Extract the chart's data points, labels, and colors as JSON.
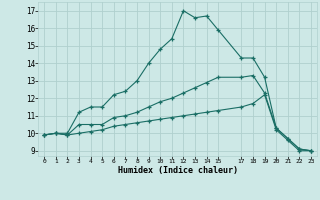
{
  "xlabel": "Humidex (Indice chaleur)",
  "bg_color": "#cde8e6",
  "grid_color": "#b0d0ce",
  "line_color": "#1a6e65",
  "xlim": [
    -0.5,
    23.5
  ],
  "ylim": [
    8.7,
    17.5
  ],
  "yticks": [
    9,
    10,
    11,
    12,
    13,
    14,
    15,
    16,
    17
  ],
  "xticks": [
    0,
    1,
    2,
    3,
    4,
    5,
    6,
    7,
    8,
    9,
    10,
    11,
    12,
    13,
    14,
    15,
    17,
    18,
    19,
    20,
    21,
    22,
    23
  ],
  "line1_x": [
    0,
    1,
    2,
    3,
    4,
    5,
    6,
    7,
    8,
    9,
    10,
    11,
    12,
    13,
    14,
    15,
    17,
    18,
    19,
    20,
    21,
    22,
    23
  ],
  "line1_y": [
    9.9,
    10.0,
    10.0,
    11.2,
    11.5,
    11.5,
    12.2,
    12.4,
    13.0,
    14.0,
    14.8,
    15.4,
    17.0,
    16.6,
    16.7,
    15.9,
    14.3,
    14.3,
    13.2,
    10.3,
    9.7,
    9.1,
    9.0
  ],
  "line2_x": [
    0,
    1,
    2,
    3,
    4,
    5,
    6,
    7,
    8,
    9,
    10,
    11,
    12,
    13,
    14,
    15,
    17,
    18,
    19,
    20,
    21,
    22,
    23
  ],
  "line2_y": [
    9.9,
    10.0,
    9.9,
    10.5,
    10.5,
    10.5,
    10.9,
    11.0,
    11.2,
    11.5,
    11.8,
    12.0,
    12.3,
    12.6,
    12.9,
    13.2,
    13.2,
    13.3,
    12.3,
    10.3,
    9.7,
    9.1,
    9.0
  ],
  "line3_x": [
    0,
    1,
    2,
    3,
    4,
    5,
    6,
    7,
    8,
    9,
    10,
    11,
    12,
    13,
    14,
    15,
    17,
    18,
    19,
    20,
    21,
    22,
    23
  ],
  "line3_y": [
    9.9,
    10.0,
    9.9,
    10.0,
    10.1,
    10.2,
    10.4,
    10.5,
    10.6,
    10.7,
    10.8,
    10.9,
    11.0,
    11.1,
    11.2,
    11.3,
    11.5,
    11.7,
    12.2,
    10.2,
    9.6,
    9.0,
    9.0
  ]
}
